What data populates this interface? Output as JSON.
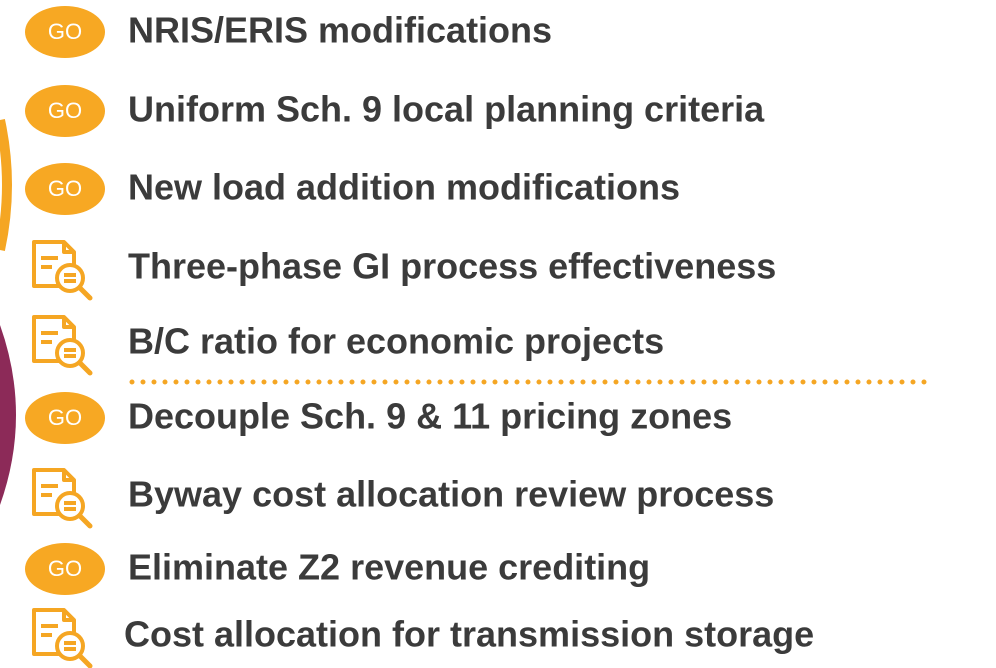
{
  "items": [
    {
      "badge": "GO",
      "text": "NRIS/ERIS modifications"
    },
    {
      "badge": "GO",
      "text": "Uniform Sch. 9 local planning criteria"
    },
    {
      "badge": "GO",
      "text": "New load addition modifications"
    },
    {
      "text": "Three-phase GI process effectiveness"
    },
    {
      "text": "B/C ratio for economic projects"
    },
    {
      "badge": "GO",
      "text": "Decouple Sch. 9 & 11 pricing zones"
    },
    {
      "text": "Byway cost allocation review process"
    },
    {
      "badge": "GO",
      "text": "Eliminate Z2 revenue crediting"
    },
    {
      "text": "Cost allocation for transmission storage"
    }
  ]
}
